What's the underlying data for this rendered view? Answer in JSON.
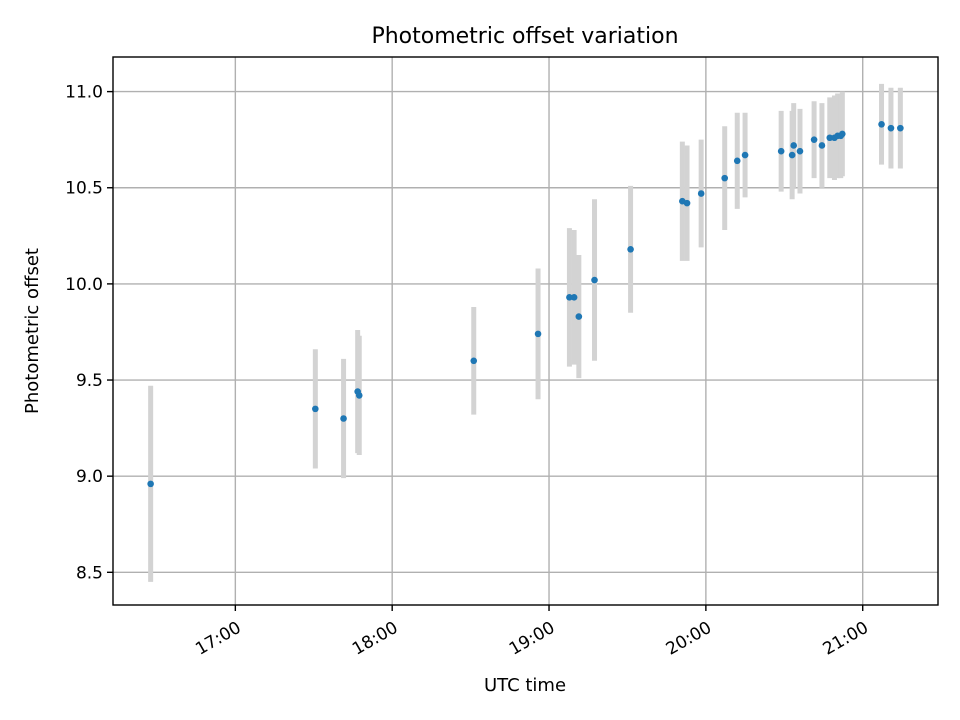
{
  "chart_data": {
    "type": "scatter",
    "title": "Photometric offset variation",
    "xlabel": "UTC time",
    "ylabel": "Photometric offset",
    "grid": true,
    "xlim": [
      16.22,
      21.48
    ],
    "ylim": [
      8.33,
      11.18
    ],
    "x_ticks": [
      {
        "value": 17,
        "label": "17:00"
      },
      {
        "value": 18,
        "label": "18:00"
      },
      {
        "value": 19,
        "label": "19:00"
      },
      {
        "value": 20,
        "label": "20:00"
      },
      {
        "value": 21,
        "label": "21:00"
      }
    ],
    "y_ticks": [
      {
        "value": 8.5,
        "label": "8.5"
      },
      {
        "value": 9.0,
        "label": "9.0"
      },
      {
        "value": 9.5,
        "label": "9.5"
      },
      {
        "value": 10.0,
        "label": "10.0"
      },
      {
        "value": 10.5,
        "label": "10.5"
      },
      {
        "value": 11.0,
        "label": "11.0"
      }
    ],
    "point_color": "#1f77b4",
    "errorbar_color": "#d3d3d3",
    "points": [
      {
        "x": 16.46,
        "y": 8.96,
        "err": 0.51
      },
      {
        "x": 17.51,
        "y": 9.35,
        "err": 0.31
      },
      {
        "x": 17.69,
        "y": 9.3,
        "err": 0.31
      },
      {
        "x": 17.78,
        "y": 9.44,
        "err": 0.32
      },
      {
        "x": 17.79,
        "y": 9.42,
        "err": 0.31
      },
      {
        "x": 18.52,
        "y": 9.6,
        "err": 0.28
      },
      {
        "x": 18.93,
        "y": 9.74,
        "err": 0.34
      },
      {
        "x": 19.13,
        "y": 9.93,
        "err": 0.36
      },
      {
        "x": 19.16,
        "y": 9.93,
        "err": 0.35
      },
      {
        "x": 19.19,
        "y": 9.83,
        "err": 0.32
      },
      {
        "x": 19.29,
        "y": 10.02,
        "err": 0.42
      },
      {
        "x": 19.52,
        "y": 10.18,
        "err": 0.33
      },
      {
        "x": 19.85,
        "y": 10.43,
        "err": 0.31
      },
      {
        "x": 19.88,
        "y": 10.42,
        "err": 0.3
      },
      {
        "x": 19.97,
        "y": 10.47,
        "err": 0.28
      },
      {
        "x": 20.12,
        "y": 10.55,
        "err": 0.27
      },
      {
        "x": 20.2,
        "y": 10.64,
        "err": 0.25
      },
      {
        "x": 20.25,
        "y": 10.67,
        "err": 0.22
      },
      {
        "x": 20.48,
        "y": 10.69,
        "err": 0.21
      },
      {
        "x": 20.55,
        "y": 10.67,
        "err": 0.23
      },
      {
        "x": 20.56,
        "y": 10.72,
        "err": 0.22
      },
      {
        "x": 20.6,
        "y": 10.69,
        "err": 0.22
      },
      {
        "x": 20.69,
        "y": 10.75,
        "err": 0.2
      },
      {
        "x": 20.74,
        "y": 10.72,
        "err": 0.22
      },
      {
        "x": 20.79,
        "y": 10.76,
        "err": 0.21
      },
      {
        "x": 20.82,
        "y": 10.76,
        "err": 0.22
      },
      {
        "x": 20.84,
        "y": 10.77,
        "err": 0.22
      },
      {
        "x": 20.86,
        "y": 10.77,
        "err": 0.22
      },
      {
        "x": 20.87,
        "y": 10.78,
        "err": 0.22
      },
      {
        "x": 21.12,
        "y": 10.83,
        "err": 0.21
      },
      {
        "x": 21.18,
        "y": 10.81,
        "err": 0.21
      },
      {
        "x": 21.24,
        "y": 10.81,
        "err": 0.21
      }
    ]
  }
}
